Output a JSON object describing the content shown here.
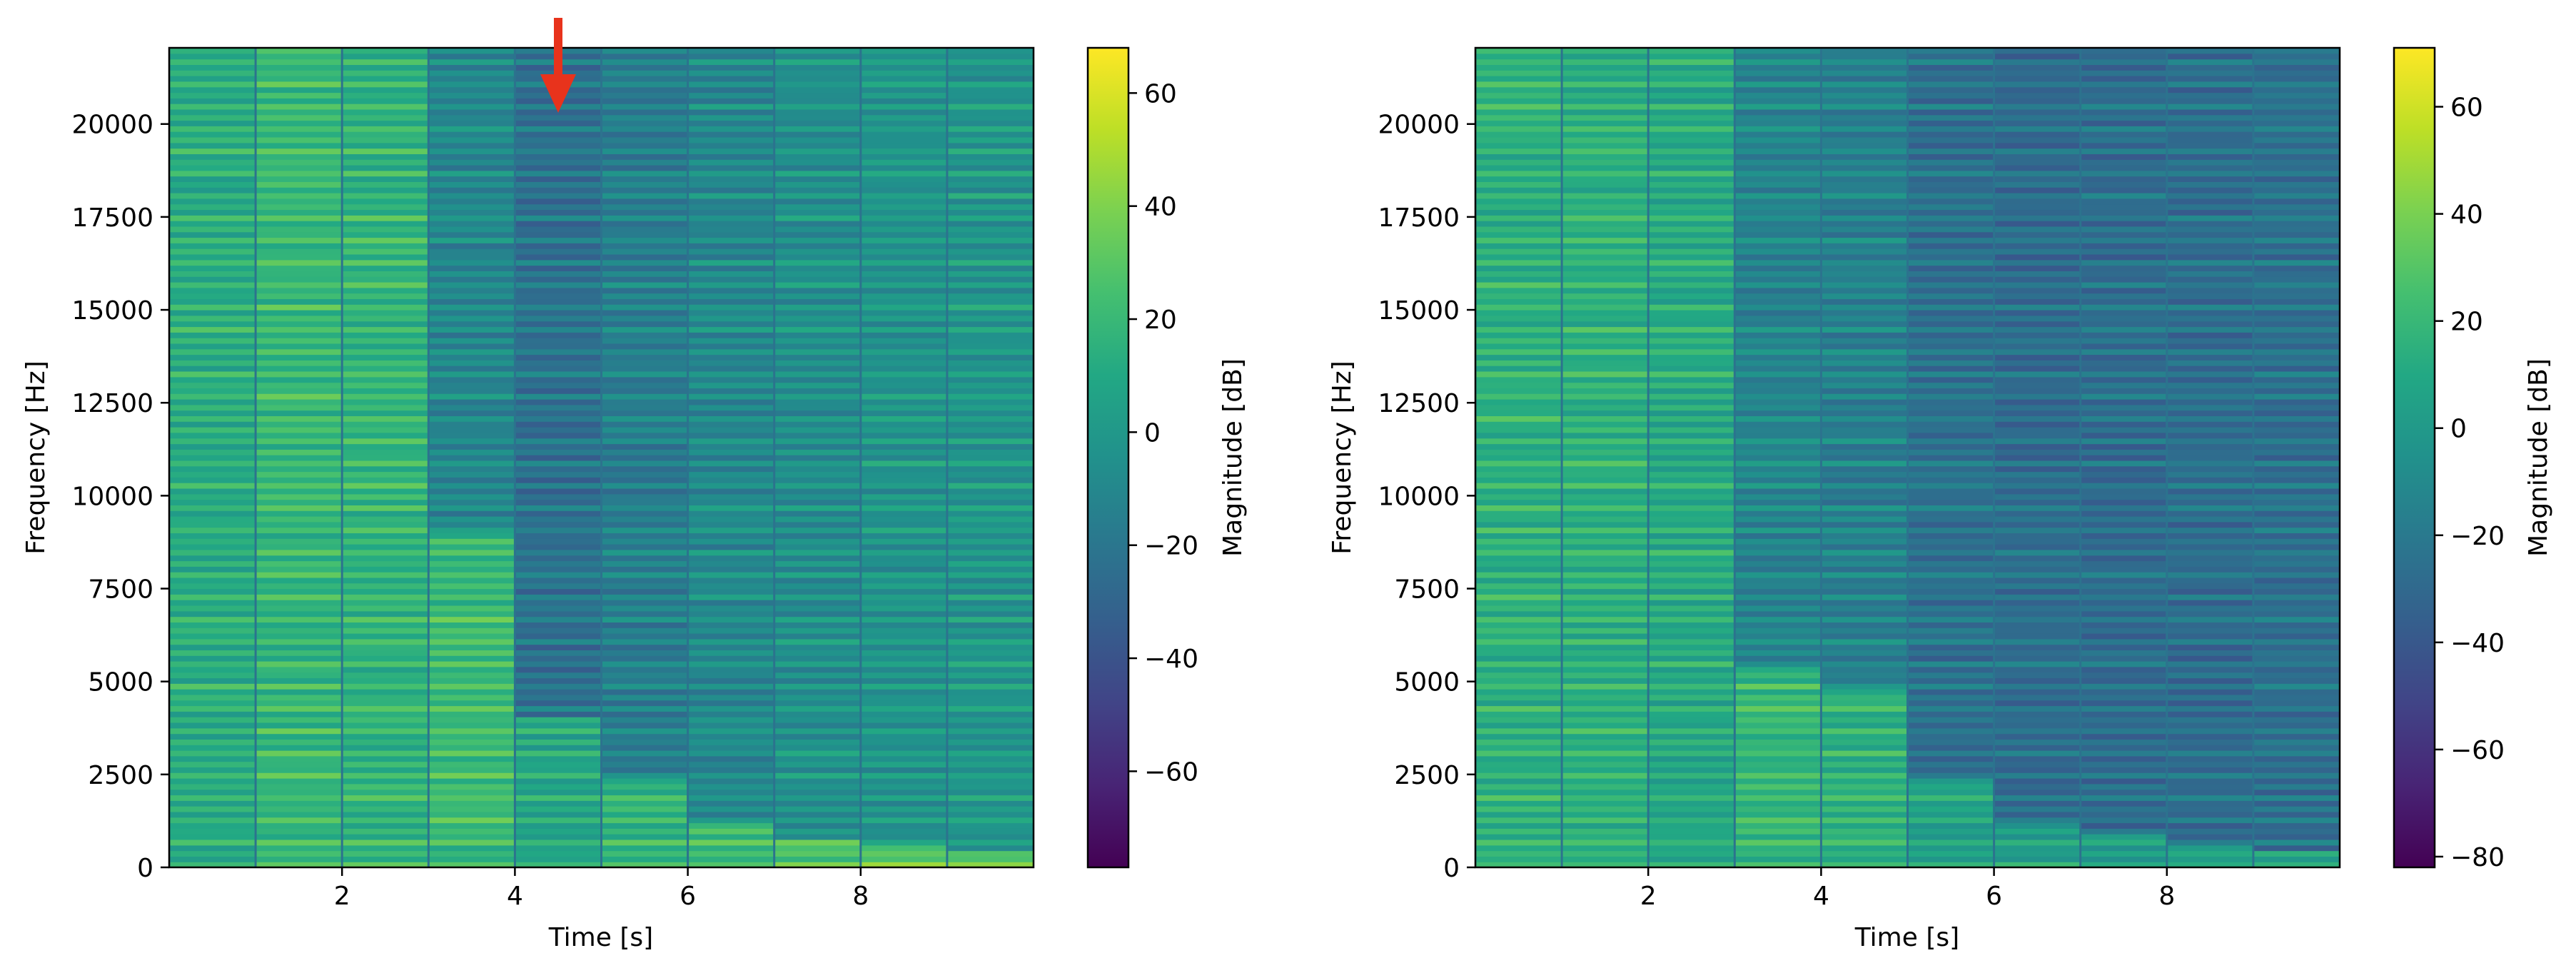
{
  "chart_data": [
    {
      "type": "heatmap",
      "panel": "left",
      "xlabel": "Time [s]",
      "ylabel": "Frequency [Hz]",
      "xlim": [
        0,
        10
      ],
      "ylim": [
        0,
        22050
      ],
      "xticks": [
        2,
        4,
        6,
        8
      ],
      "yticks": [
        0,
        2500,
        5000,
        7500,
        10000,
        12500,
        15000,
        17500,
        20000
      ],
      "segments": [
        {
          "t0": 0,
          "t1": 1,
          "level": 10,
          "dark_above_hz": null
        },
        {
          "t0": 1,
          "t1": 2,
          "level": 16,
          "dark_above_hz": null
        },
        {
          "t0": 2,
          "t1": 3,
          "level": 14,
          "dark_above_hz": null
        },
        {
          "t0": 3,
          "t1": 4,
          "level": -4,
          "dark_above_hz": 9000
        },
        {
          "t0": 4,
          "t1": 5,
          "level": -16,
          "dark_above_hz": 4000
        },
        {
          "t0": 5,
          "t1": 6,
          "level": -8,
          "dark_above_hz": 2400
        },
        {
          "t0": 6,
          "t1": 7,
          "level": -2,
          "dark_above_hz": 1200
        },
        {
          "t0": 7,
          "t1": 8,
          "level": 2,
          "dark_above_hz": 800
        },
        {
          "t0": 8,
          "t1": 9,
          "level": 5,
          "dark_above_hz": 600
        },
        {
          "t0": 9,
          "t1": 10,
          "level": 6,
          "dark_above_hz": 400
        }
      ],
      "colorbar": {
        "label": "Magnitude [dB]",
        "range": [
          -77,
          68
        ],
        "ticks": [
          -60,
          -40,
          -20,
          0,
          20,
          40,
          60
        ]
      },
      "annotation": {
        "type": "arrow",
        "color": "#e8331c",
        "x": 4.45,
        "points_to_hz": 20700,
        "meaning": "marker"
      }
    },
    {
      "type": "heatmap",
      "panel": "right",
      "xlabel": "Time [s]",
      "ylabel": "Frequency [Hz]",
      "xlim": [
        0,
        10
      ],
      "ylim": [
        0,
        22050
      ],
      "xticks": [
        2,
        4,
        6,
        8
      ],
      "yticks": [
        0,
        2500,
        5000,
        7500,
        10000,
        12500,
        15000,
        17500,
        20000
      ],
      "segments": [
        {
          "t0": 0,
          "t1": 1,
          "level": 12,
          "dark_above_hz": null
        },
        {
          "t0": 1,
          "t1": 2,
          "level": 12,
          "dark_above_hz": null
        },
        {
          "t0": 2,
          "t1": 3,
          "level": 8,
          "dark_above_hz": null
        },
        {
          "t0": 3,
          "t1": 4,
          "level": -6,
          "dark_above_hz": 5400
        },
        {
          "t0": 4,
          "t1": 5,
          "level": -8,
          "dark_above_hz": 4800
        },
        {
          "t0": 5,
          "t1": 6,
          "level": -18,
          "dark_above_hz": 2400
        },
        {
          "t0": 6,
          "t1": 7,
          "level": -20,
          "dark_above_hz": 1200
        },
        {
          "t0": 7,
          "t1": 8,
          "level": -20,
          "dark_above_hz": 900
        },
        {
          "t0": 8,
          "t1": 9,
          "level": -20,
          "dark_above_hz": 600
        },
        {
          "t0": 9,
          "t1": 10,
          "level": -18,
          "dark_above_hz": 400
        }
      ],
      "colorbar": {
        "label": "Magnitude [dB]",
        "range": [
          -82,
          71
        ],
        "ticks": [
          -80,
          -60,
          -40,
          -20,
          0,
          20,
          40,
          60
        ]
      }
    }
  ]
}
